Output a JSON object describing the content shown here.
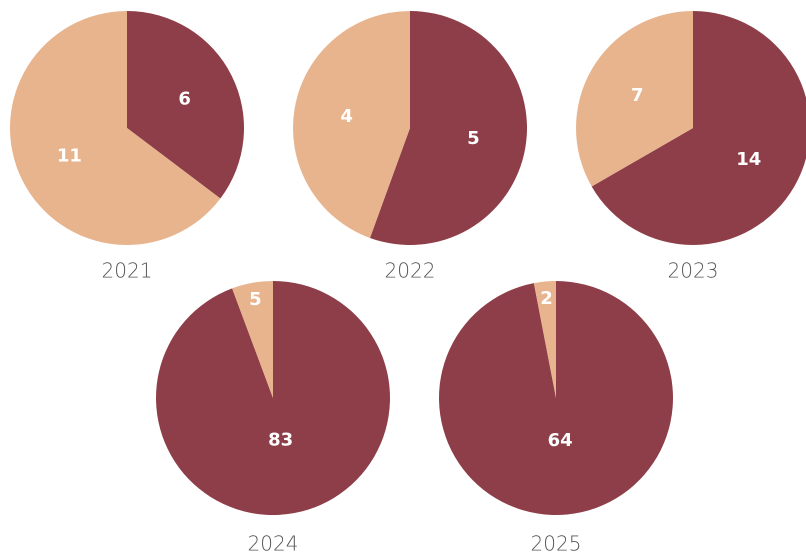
{
  "chart_data": [
    {
      "type": "pie",
      "title": "2021",
      "values": [
        6,
        11
      ],
      "colors": [
        "#8e3e48",
        "#e8b48e"
      ]
    },
    {
      "type": "pie",
      "title": "2022",
      "values": [
        5,
        4
      ],
      "colors": [
        "#8e3e48",
        "#e8b48e"
      ]
    },
    {
      "type": "pie",
      "title": "2023",
      "values": [
        14,
        7
      ],
      "colors": [
        "#8e3e48",
        "#e8b48e"
      ]
    },
    {
      "type": "pie",
      "title": "2024",
      "values": [
        83,
        5
      ],
      "colors": [
        "#8e3e48",
        "#e8b48e"
      ]
    },
    {
      "type": "pie",
      "title": "2025",
      "values": [
        64,
        2
      ],
      "colors": [
        "#8e3e48",
        "#e8b48e"
      ]
    }
  ]
}
